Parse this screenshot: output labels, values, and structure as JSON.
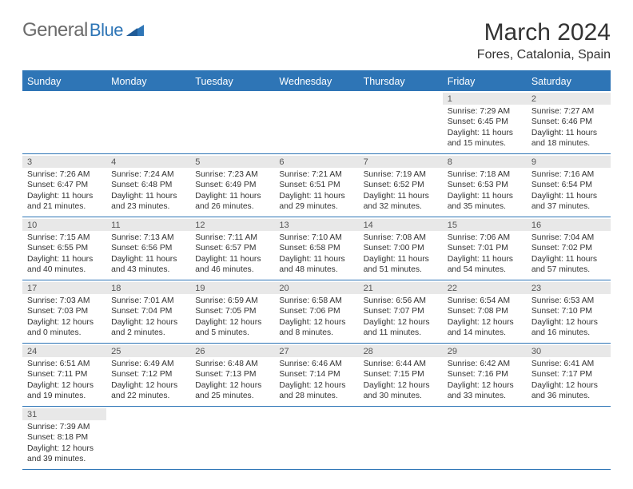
{
  "logo": {
    "part1": "General",
    "part2": "Blue"
  },
  "title": "March 2024",
  "location": "Fores, Catalonia, Spain",
  "colors": {
    "accent": "#2e75b6",
    "logo_gray": "#6b6b6b",
    "day_header_bg": "#e8e8e8",
    "text": "#333333"
  },
  "weekdays": [
    "Sunday",
    "Monday",
    "Tuesday",
    "Wednesday",
    "Thursday",
    "Friday",
    "Saturday"
  ],
  "blanks_before": 5,
  "days": [
    {
      "n": "1",
      "sunrise": "7:29 AM",
      "sunset": "6:45 PM",
      "daylight": "11 hours and 15 minutes."
    },
    {
      "n": "2",
      "sunrise": "7:27 AM",
      "sunset": "6:46 PM",
      "daylight": "11 hours and 18 minutes."
    },
    {
      "n": "3",
      "sunrise": "7:26 AM",
      "sunset": "6:47 PM",
      "daylight": "11 hours and 21 minutes."
    },
    {
      "n": "4",
      "sunrise": "7:24 AM",
      "sunset": "6:48 PM",
      "daylight": "11 hours and 23 minutes."
    },
    {
      "n": "5",
      "sunrise": "7:23 AM",
      "sunset": "6:49 PM",
      "daylight": "11 hours and 26 minutes."
    },
    {
      "n": "6",
      "sunrise": "7:21 AM",
      "sunset": "6:51 PM",
      "daylight": "11 hours and 29 minutes."
    },
    {
      "n": "7",
      "sunrise": "7:19 AM",
      "sunset": "6:52 PM",
      "daylight": "11 hours and 32 minutes."
    },
    {
      "n": "8",
      "sunrise": "7:18 AM",
      "sunset": "6:53 PM",
      "daylight": "11 hours and 35 minutes."
    },
    {
      "n": "9",
      "sunrise": "7:16 AM",
      "sunset": "6:54 PM",
      "daylight": "11 hours and 37 minutes."
    },
    {
      "n": "10",
      "sunrise": "7:15 AM",
      "sunset": "6:55 PM",
      "daylight": "11 hours and 40 minutes."
    },
    {
      "n": "11",
      "sunrise": "7:13 AM",
      "sunset": "6:56 PM",
      "daylight": "11 hours and 43 minutes."
    },
    {
      "n": "12",
      "sunrise": "7:11 AM",
      "sunset": "6:57 PM",
      "daylight": "11 hours and 46 minutes."
    },
    {
      "n": "13",
      "sunrise": "7:10 AM",
      "sunset": "6:58 PM",
      "daylight": "11 hours and 48 minutes."
    },
    {
      "n": "14",
      "sunrise": "7:08 AM",
      "sunset": "7:00 PM",
      "daylight": "11 hours and 51 minutes."
    },
    {
      "n": "15",
      "sunrise": "7:06 AM",
      "sunset": "7:01 PM",
      "daylight": "11 hours and 54 minutes."
    },
    {
      "n": "16",
      "sunrise": "7:04 AM",
      "sunset": "7:02 PM",
      "daylight": "11 hours and 57 minutes."
    },
    {
      "n": "17",
      "sunrise": "7:03 AM",
      "sunset": "7:03 PM",
      "daylight": "12 hours and 0 minutes."
    },
    {
      "n": "18",
      "sunrise": "7:01 AM",
      "sunset": "7:04 PM",
      "daylight": "12 hours and 2 minutes."
    },
    {
      "n": "19",
      "sunrise": "6:59 AM",
      "sunset": "7:05 PM",
      "daylight": "12 hours and 5 minutes."
    },
    {
      "n": "20",
      "sunrise": "6:58 AM",
      "sunset": "7:06 PM",
      "daylight": "12 hours and 8 minutes."
    },
    {
      "n": "21",
      "sunrise": "6:56 AM",
      "sunset": "7:07 PM",
      "daylight": "12 hours and 11 minutes."
    },
    {
      "n": "22",
      "sunrise": "6:54 AM",
      "sunset": "7:08 PM",
      "daylight": "12 hours and 14 minutes."
    },
    {
      "n": "23",
      "sunrise": "6:53 AM",
      "sunset": "7:10 PM",
      "daylight": "12 hours and 16 minutes."
    },
    {
      "n": "24",
      "sunrise": "6:51 AM",
      "sunset": "7:11 PM",
      "daylight": "12 hours and 19 minutes."
    },
    {
      "n": "25",
      "sunrise": "6:49 AM",
      "sunset": "7:12 PM",
      "daylight": "12 hours and 22 minutes."
    },
    {
      "n": "26",
      "sunrise": "6:48 AM",
      "sunset": "7:13 PM",
      "daylight": "12 hours and 25 minutes."
    },
    {
      "n": "27",
      "sunrise": "6:46 AM",
      "sunset": "7:14 PM",
      "daylight": "12 hours and 28 minutes."
    },
    {
      "n": "28",
      "sunrise": "6:44 AM",
      "sunset": "7:15 PM",
      "daylight": "12 hours and 30 minutes."
    },
    {
      "n": "29",
      "sunrise": "6:42 AM",
      "sunset": "7:16 PM",
      "daylight": "12 hours and 33 minutes."
    },
    {
      "n": "30",
      "sunrise": "6:41 AM",
      "sunset": "7:17 PM",
      "daylight": "12 hours and 36 minutes."
    },
    {
      "n": "31",
      "sunrise": "7:39 AM",
      "sunset": "8:18 PM",
      "daylight": "12 hours and 39 minutes."
    }
  ],
  "labels": {
    "sunrise": "Sunrise:",
    "sunset": "Sunset:",
    "daylight": "Daylight:"
  }
}
